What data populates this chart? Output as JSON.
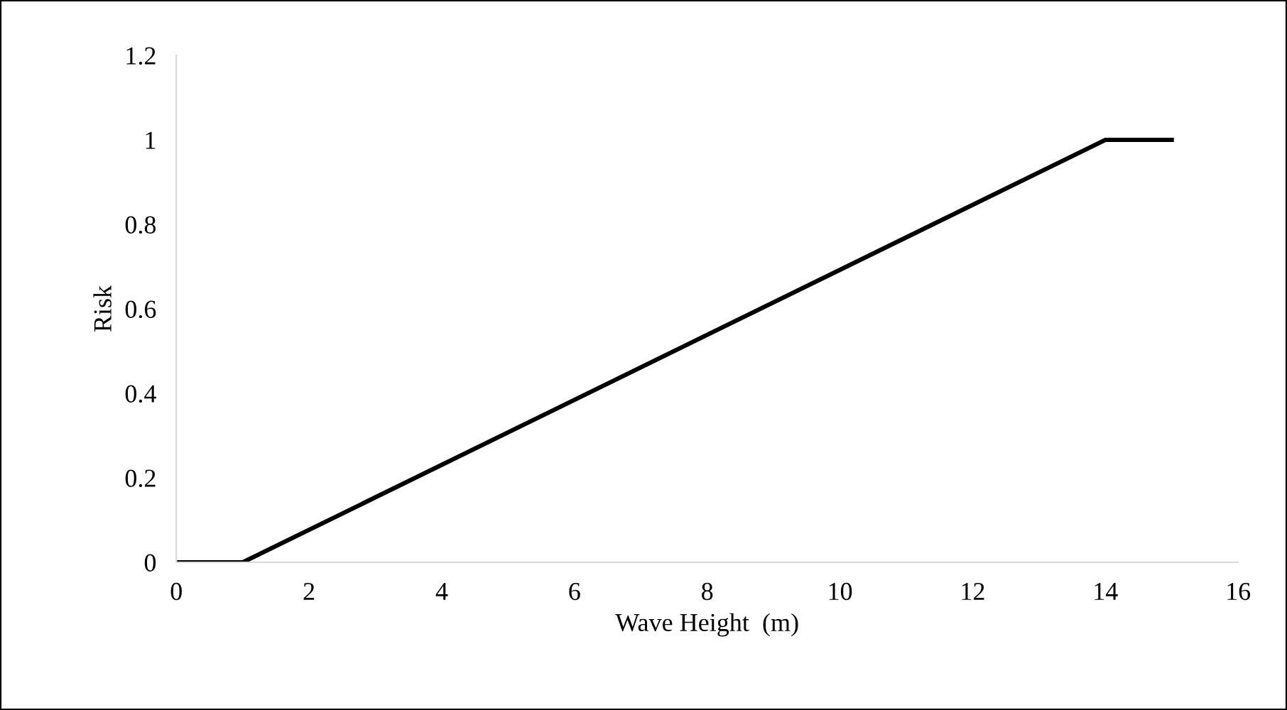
{
  "chart_data": {
    "type": "line",
    "xlabel": "Wave Height  (m)",
    "ylabel": "Risk",
    "x": [
      0,
      1,
      14,
      15
    ],
    "series": [
      {
        "color": "#000000",
        "values": [
          0,
          0,
          1,
          1
        ]
      }
    ],
    "xlim": [
      0,
      16
    ],
    "xticks": [
      0,
      2,
      4,
      6,
      8,
      10,
      12,
      14,
      16
    ],
    "ylim": [
      0,
      1.2
    ],
    "yticks": [
      0,
      0.2,
      0.4,
      0.6,
      0.8,
      1,
      1.2
    ],
    "grid": false,
    "legend": false
  }
}
